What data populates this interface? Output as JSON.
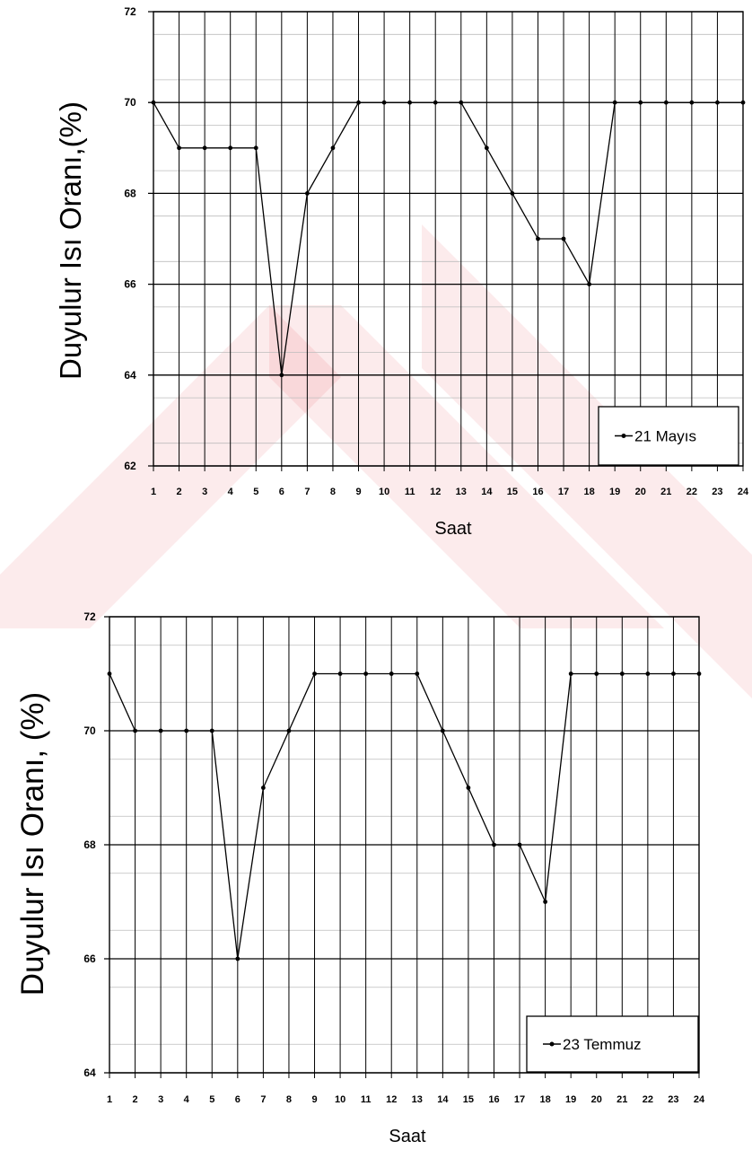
{
  "watermark_color": "#e3262f",
  "chart_data": [
    {
      "type": "line",
      "xlabel": "Saat",
      "ylabel": "Duyulur Isı Oranı,(%)",
      "x": [
        1,
        2,
        3,
        4,
        5,
        6,
        7,
        8,
        9,
        10,
        11,
        12,
        13,
        14,
        15,
        16,
        17,
        18,
        19,
        20,
        21,
        22,
        23,
        24
      ],
      "ylim": [
        62,
        72
      ],
      "yticks": [
        62,
        64,
        66,
        68,
        70,
        72
      ],
      "grid": true,
      "legend_position": "bottom-right",
      "series": [
        {
          "name": "21 Mayıs",
          "values": [
            70,
            69,
            69,
            69,
            69,
            64,
            68,
            69,
            70,
            70,
            70,
            70,
            70,
            69,
            68,
            67,
            67,
            66,
            70,
            70,
            70,
            70,
            70,
            70
          ]
        }
      ]
    },
    {
      "type": "line",
      "xlabel": "Saat",
      "ylabel": "Duyulur Isı Oranı, (%)",
      "x": [
        1,
        2,
        3,
        4,
        5,
        6,
        7,
        8,
        9,
        10,
        11,
        12,
        13,
        14,
        15,
        16,
        17,
        18,
        19,
        20,
        21,
        22,
        23,
        24
      ],
      "ylim": [
        64,
        72
      ],
      "yticks": [
        64,
        66,
        68,
        70,
        72
      ],
      "grid": true,
      "legend_position": "bottom-right",
      "series": [
        {
          "name": "23 Temmuz",
          "values": [
            71,
            70,
            70,
            70,
            70,
            66,
            69,
            70,
            71,
            71,
            71,
            71,
            71,
            70,
            69,
            68,
            68,
            67,
            71,
            71,
            71,
            71,
            71,
            71
          ]
        }
      ]
    }
  ]
}
